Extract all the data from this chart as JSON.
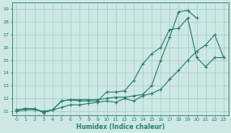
{
  "xlabel": "Humidex (Indice chaleur)",
  "bg_color": "#cde8e5",
  "grid_color": "#b0d4d0",
  "line_color": "#2a7d70",
  "xlim": [
    -0.5,
    23.5
  ],
  "ylim": [
    10.7,
    19.5
  ],
  "xticks": [
    0,
    1,
    2,
    3,
    4,
    5,
    6,
    7,
    8,
    9,
    10,
    11,
    12,
    13,
    14,
    15,
    16,
    17,
    18,
    19,
    20,
    21,
    22,
    23
  ],
  "yticks": [
    11,
    12,
    13,
    14,
    15,
    16,
    17,
    18,
    19
  ],
  "line1_x": [
    0,
    1,
    2,
    3,
    4,
    5,
    6,
    7,
    8,
    9,
    10,
    11,
    12,
    13,
    14,
    15,
    16,
    17,
    18,
    19,
    20,
    21,
    22,
    23
  ],
  "line1_y": [
    11.1,
    11.2,
    11.2,
    10.9,
    11.1,
    11.8,
    11.9,
    11.8,
    11.8,
    11.8,
    12.5,
    12.5,
    12.6,
    13.4,
    14.7,
    15.5,
    16.0,
    17.4,
    17.5,
    18.3,
    15.2,
    14.5,
    15.2,
    15.2
  ],
  "line2_x": [
    0,
    1,
    2,
    3,
    4,
    5,
    6,
    7,
    8,
    9,
    10,
    11,
    12,
    13,
    14,
    15,
    16,
    17,
    18,
    19,
    20
  ],
  "line2_y": [
    11.1,
    11.2,
    11.2,
    10.9,
    11.1,
    11.8,
    11.9,
    11.9,
    11.9,
    11.9,
    12.0,
    12.1,
    12.1,
    12.2,
    12.3,
    13.0,
    15.0,
    16.8,
    18.8,
    18.9,
    18.3
  ],
  "line3_x": [
    0,
    1,
    2,
    3,
    4,
    5,
    6,
    7,
    8,
    9,
    10,
    11,
    12,
    13,
    14,
    15,
    16,
    17,
    18,
    19,
    20,
    21,
    22,
    23
  ],
  "line3_y": [
    11.0,
    11.1,
    11.1,
    11.0,
    11.1,
    11.3,
    11.5,
    11.5,
    11.6,
    11.7,
    11.8,
    11.7,
    12.0,
    11.8,
    12.2,
    12.4,
    12.7,
    13.5,
    14.2,
    15.0,
    15.7,
    16.2,
    17.0,
    15.2
  ]
}
